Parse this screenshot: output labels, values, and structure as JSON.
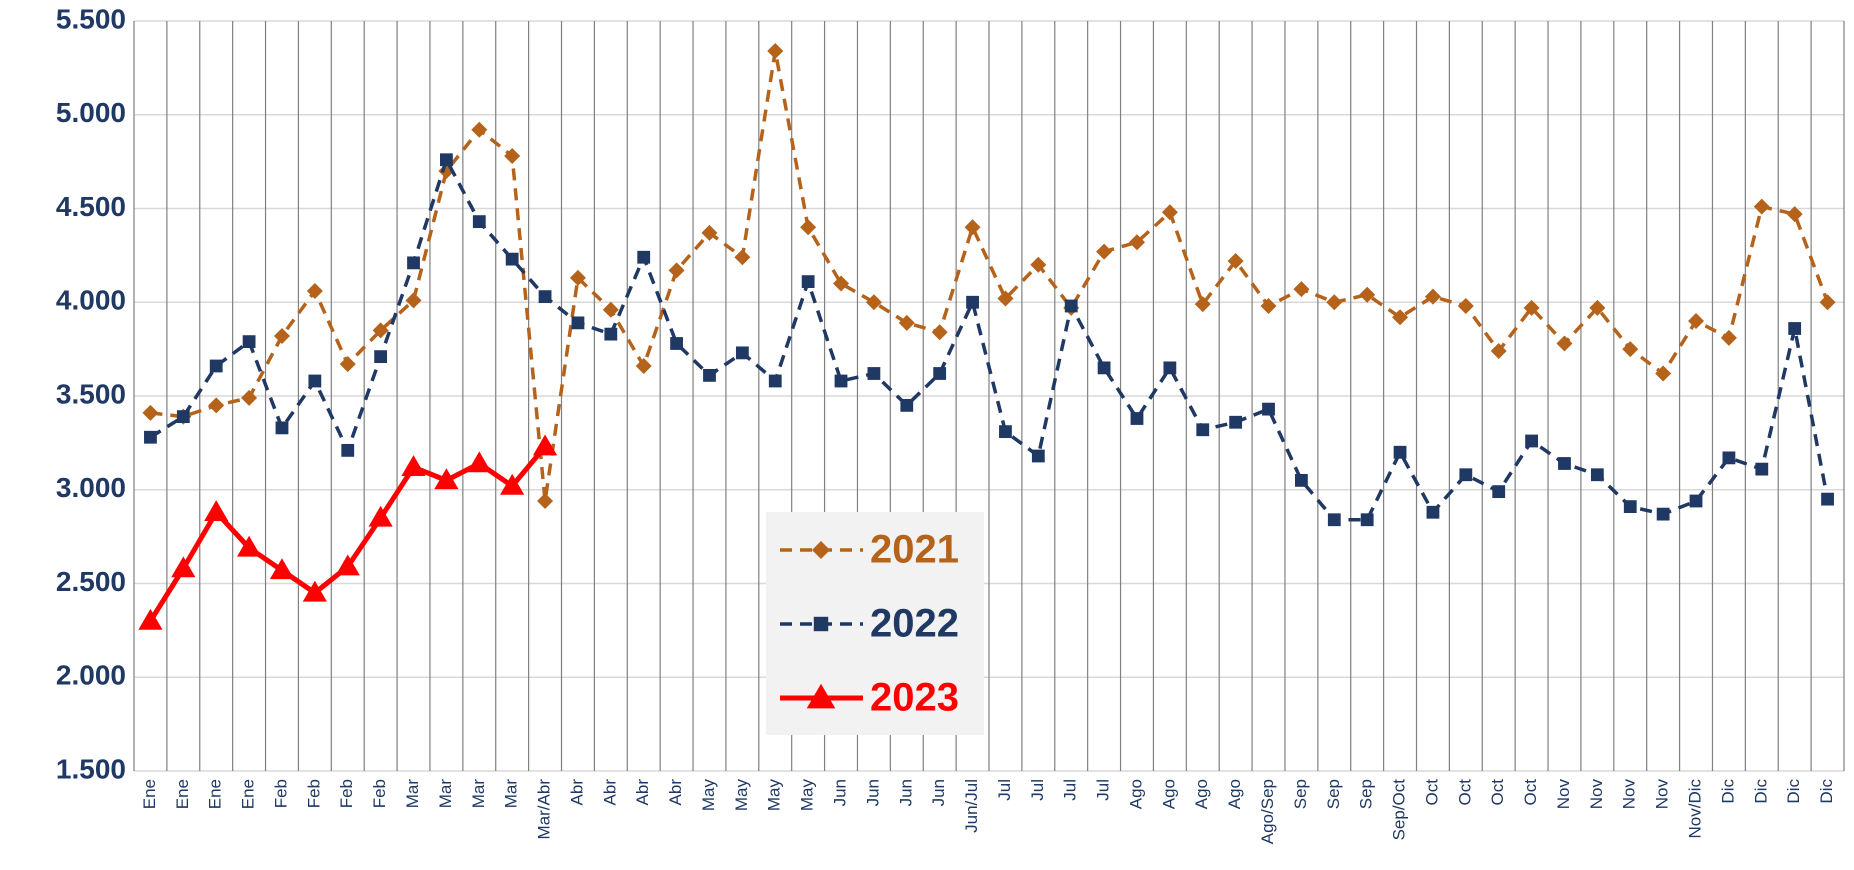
{
  "chart_data": {
    "type": "line",
    "categories": [
      "Ene",
      "Ene",
      "Ene",
      "Ene",
      "Feb",
      "Feb",
      "Feb",
      "Feb",
      "Mar",
      "Mar",
      "Mar",
      "Mar",
      "Mar/Abr",
      "Abr",
      "Abr",
      "Abr",
      "Abr",
      "May",
      "May",
      "May",
      "May",
      "Jun",
      "Jun",
      "Jun",
      "Jun",
      "Jun/Jul",
      "Jul",
      "Jul",
      "Jul",
      "Jul",
      "Ago",
      "Ago",
      "Ago",
      "Ago",
      "Ago/Sep",
      "Sep",
      "Sep",
      "Sep",
      "Sep/Oct",
      "Oct",
      "Oct",
      "Oct",
      "Oct",
      "Nov",
      "Nov",
      "Nov",
      "Nov",
      "Nov/Dic",
      "Dic",
      "Dic",
      "Dic",
      "Dic"
    ],
    "series": [
      {
        "name": "2021",
        "color": "#b5621b",
        "marker": "diamond",
        "dash": true,
        "values": [
          3410,
          3390,
          3450,
          3490,
          3820,
          4060,
          3670,
          3850,
          4010,
          4700,
          4920,
          4780,
          2940,
          4130,
          3960,
          3660,
          4170,
          4370,
          4240,
          5340,
          4400,
          4100,
          4000,
          3890,
          3840,
          4400,
          4020,
          4200,
          3970,
          4270,
          4320,
          4480,
          3990,
          4220,
          3980,
          4070,
          4000,
          4040,
          3920,
          4030,
          3980,
          3740,
          3970,
          3780,
          3970,
          3750,
          3620,
          3900,
          3810,
          4510,
          4470,
          4000
        ]
      },
      {
        "name": "2022",
        "color": "#1f3864",
        "marker": "square",
        "dash": true,
        "values": [
          3280,
          3390,
          3660,
          3790,
          3330,
          3580,
          3210,
          3710,
          4210,
          4760,
          4430,
          4230,
          4030,
          3890,
          3830,
          4240,
          3780,
          3610,
          3730,
          3580,
          4110,
          3580,
          3620,
          3450,
          3620,
          4000,
          3310,
          3180,
          3980,
          3650,
          3380,
          3650,
          3320,
          3360,
          3430,
          3050,
          2840,
          2840,
          3200,
          2880,
          3080,
          2990,
          3260,
          3140,
          3080,
          2910,
          2870,
          2940,
          3170,
          3110,
          3860,
          2950
        ]
      },
      {
        "name": "2023",
        "color": "#ff0000",
        "marker": "triangle",
        "dash": false,
        "values": [
          2300,
          2580,
          2880,
          2690,
          2570,
          2450,
          2590,
          2850,
          3120,
          3050,
          3140,
          3020,
          3230,
          null,
          null,
          null,
          null,
          null,
          null,
          null,
          null,
          null,
          null,
          null,
          null,
          null,
          null,
          null,
          null,
          null,
          null,
          null,
          null,
          null,
          null,
          null,
          null,
          null,
          null,
          null,
          null,
          null,
          null,
          null,
          null,
          null,
          null,
          null,
          null,
          null,
          null,
          null
        ]
      }
    ],
    "ylim": [
      1500,
      5500
    ],
    "yticks": [
      {
        "value": 1500,
        "label": "1.500"
      },
      {
        "value": 2000,
        "label": "2.000"
      },
      {
        "value": 2500,
        "label": "2.500"
      },
      {
        "value": 3000,
        "label": "3.000"
      },
      {
        "value": 3500,
        "label": "3.500"
      },
      {
        "value": 4000,
        "label": "4.000"
      },
      {
        "value": 4500,
        "label": "4.500"
      },
      {
        "value": 5000,
        "label": "5.000"
      },
      {
        "value": 5500,
        "label": "5.500"
      }
    ],
    "grid": true,
    "legend_position": "center"
  }
}
